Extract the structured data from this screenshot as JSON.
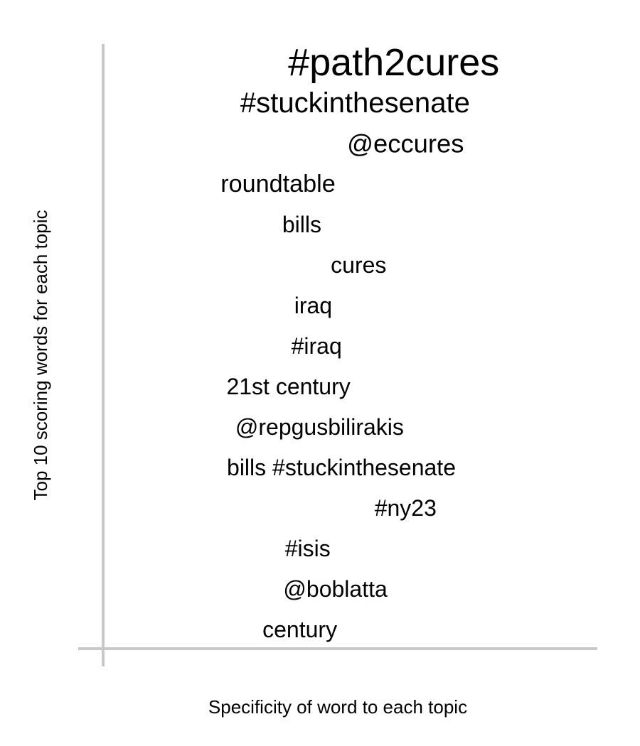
{
  "chart_data": {
    "type": "scatter",
    "xlabel": "Specificity of word to each topic",
    "ylabel": "Top 10 scoring words for each topic",
    "axis_color": "#c8c8c8",
    "text_color": "#000000",
    "words": [
      {
        "text": "#path2cures",
        "x": 0.588,
        "rank": 1,
        "weight": 1.0
      },
      {
        "text": "#stuckinthesenate",
        "x": 0.51,
        "rank": 2,
        "weight": 0.62
      },
      {
        "text": "@eccures",
        "x": 0.612,
        "rank": 3,
        "weight": 0.52
      },
      {
        "text": "roundtable",
        "x": 0.354,
        "rank": 4,
        "weight": 0.46
      },
      {
        "text": "bills",
        "x": 0.402,
        "rank": 5,
        "weight": 0.4
      },
      {
        "text": "cures",
        "x": 0.517,
        "rank": 6,
        "weight": 0.4
      },
      {
        "text": "iraq",
        "x": 0.425,
        "rank": 7,
        "weight": 0.4
      },
      {
        "text": "#iraq",
        "x": 0.432,
        "rank": 8,
        "weight": 0.4
      },
      {
        "text": "21st century",
        "x": 0.375,
        "rank": 9,
        "weight": 0.4
      },
      {
        "text": "@repgusbilirakis",
        "x": 0.438,
        "rank": 10,
        "weight": 0.4
      },
      {
        "text": "bills #stuckinthesenate",
        "x": 0.482,
        "rank": 11,
        "weight": 0.4
      },
      {
        "text": "#ny23",
        "x": 0.612,
        "rank": 12,
        "weight": 0.4
      },
      {
        "text": "#isis",
        "x": 0.414,
        "rank": 13,
        "weight": 0.4
      },
      {
        "text": "@boblatta",
        "x": 0.47,
        "rank": 14,
        "weight": 0.4
      },
      {
        "text": "century",
        "x": 0.398,
        "rank": 15,
        "weight": 0.4
      }
    ]
  }
}
